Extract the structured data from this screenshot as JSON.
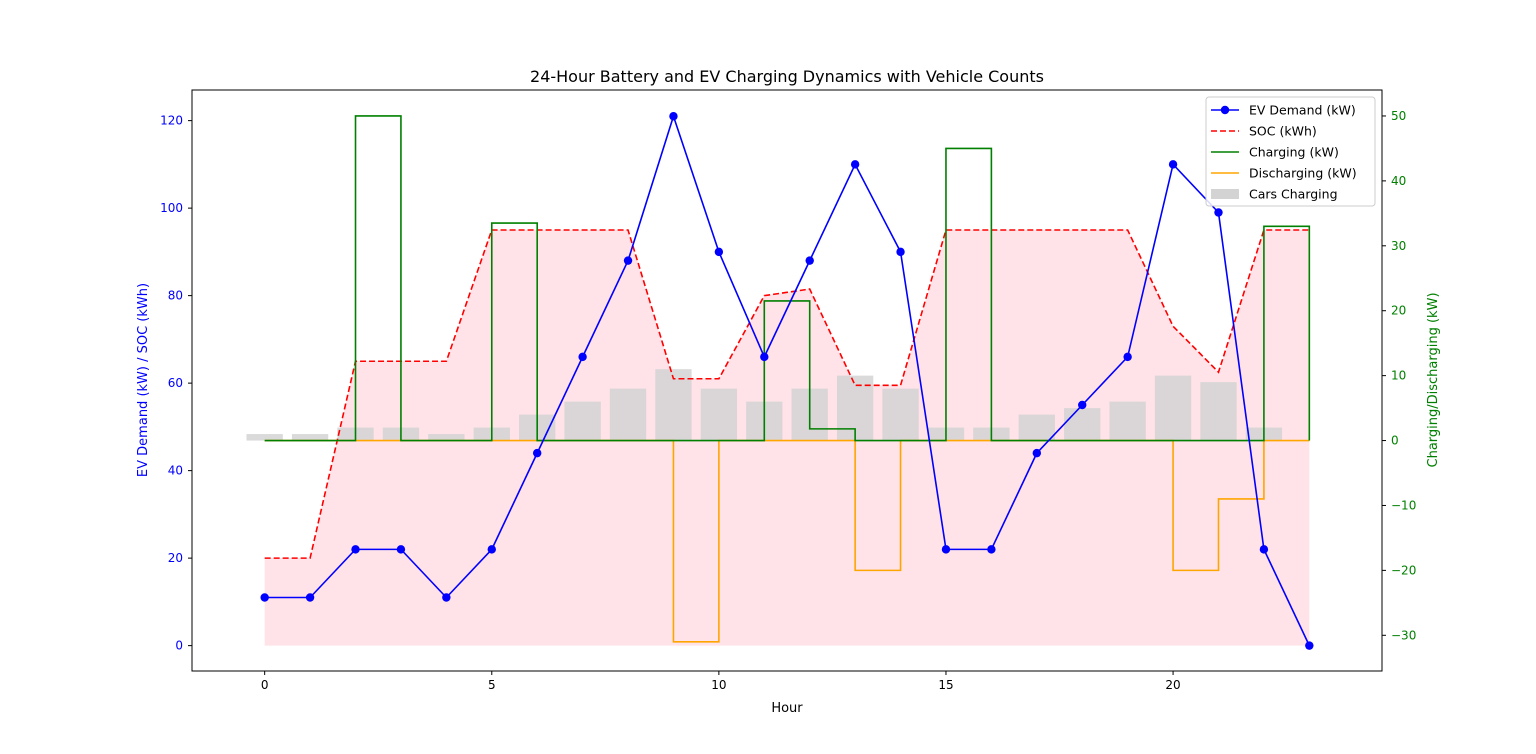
{
  "chart_data": {
    "type": "line",
    "title": "24-Hour Battery and EV Charging Dynamics with Vehicle Counts",
    "xlabel": "Hour",
    "ylabel_left": "EV Demand (kW) / SOC (kWh)",
    "ylabel_right": "Charging/Discharging (kW)",
    "xlim": [
      -1.6,
      24.6
    ],
    "ylim_left": [
      -5.8,
      127
    ],
    "ylim_right": [
      -35.5,
      54
    ],
    "x_ticks": [
      0,
      5,
      10,
      15,
      20
    ],
    "y_ticks_left": [
      0,
      20,
      40,
      60,
      80,
      100,
      120
    ],
    "y_ticks_right": [
      -30,
      -20,
      -10,
      0,
      10,
      20,
      30,
      40,
      50
    ],
    "grid": false,
    "legend_position": "top-right",
    "colors": {
      "ev_demand": "#0000ff",
      "soc": "#ff0000",
      "soc_fill": "#ffc0cb",
      "charging": "#008000",
      "discharging": "#ffa500",
      "cars": "#d3d3d3",
      "left_axis": "#0000ff",
      "right_axis": "#008000"
    },
    "x": [
      0,
      1,
      2,
      3,
      4,
      5,
      6,
      7,
      8,
      9,
      10,
      11,
      12,
      13,
      14,
      15,
      16,
      17,
      18,
      19,
      20,
      21,
      22,
      23
    ],
    "series": [
      {
        "name": "EV Demand (kW)",
        "key": "ev_demand",
        "axis": "left",
        "style": "line-marker",
        "values": [
          11,
          11,
          22,
          22,
          11,
          22,
          44,
          66,
          88,
          121,
          90,
          66,
          88,
          110,
          90,
          22,
          22,
          44,
          55,
          66,
          110,
          99,
          22,
          0
        ]
      },
      {
        "name": "SOC (kWh)",
        "key": "soc",
        "axis": "left",
        "style": "dashed-fill",
        "values": [
          20,
          20,
          65,
          65,
          65,
          95,
          95,
          95,
          95,
          61,
          61,
          80,
          81.5,
          59.5,
          59.5,
          95,
          95,
          95,
          95,
          95,
          73,
          62.5,
          95,
          95
        ]
      },
      {
        "name": "Charging (kW)",
        "key": "charging",
        "axis": "right",
        "style": "step-post",
        "values": [
          0,
          0,
          50,
          0,
          0,
          33.5,
          0,
          0,
          0,
          0,
          0,
          21.5,
          1.8,
          0,
          0,
          45,
          0,
          0,
          0,
          0,
          0,
          0,
          33,
          0
        ]
      },
      {
        "name": "Discharging (kW)",
        "key": "discharging",
        "axis": "right",
        "style": "step-post",
        "values": [
          0,
          0,
          0,
          0,
          0,
          0,
          0,
          0,
          0,
          -31,
          0,
          0,
          0,
          -20,
          0,
          0,
          0,
          0,
          0,
          0,
          -20,
          -9,
          0,
          0
        ]
      },
      {
        "name": "Cars Charging",
        "key": "cars",
        "axis": "right",
        "style": "bar",
        "values": [
          1,
          1,
          2,
          2,
          1,
          2,
          4,
          6,
          8,
          11,
          8,
          6,
          8,
          10,
          8,
          2,
          2,
          4,
          5,
          6,
          10,
          9,
          2,
          0
        ]
      }
    ]
  }
}
